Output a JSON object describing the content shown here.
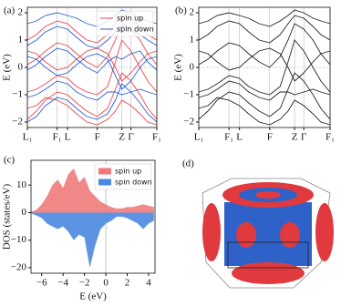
{
  "chart_data": [
    {
      "type": "line",
      "panel_label": "(a)",
      "ylabel": "E (eV)",
      "x": [
        0,
        0.07,
        0.14,
        0.23,
        0.31,
        0.38,
        0.46,
        0.54,
        0.62,
        0.68,
        0.73,
        0.8,
        0.87,
        0.93,
        1.0
      ],
      "xlim": [
        0,
        1
      ],
      "xticks": [
        {
          "value": 0,
          "label": "L₁"
        },
        {
          "value": 0.23,
          "label": "F₁"
        },
        {
          "value": 0.31,
          "label": "L"
        },
        {
          "value": 0.54,
          "label": "F"
        },
        {
          "value": 0.73,
          "label": "Z"
        },
        {
          "value": 0.8,
          "label": "Γ"
        },
        {
          "value": 1.0,
          "label": "F₁"
        }
      ],
      "ylim": [
        -2.2,
        2.2
      ],
      "yticks": [
        {
          "value": -2,
          "label": "−2"
        },
        {
          "value": -1,
          "label": "−1"
        },
        0,
        1,
        2
      ],
      "grid": true,
      "legend": "upper right",
      "series": [
        {
          "name": "spin up",
          "color": "#e8464b",
          "bands": [
            [
              -1.9,
              -1.6,
              -1.2,
              -0.9,
              -1.0,
              -1.3,
              -1.6,
              -1.8,
              -1.5,
              -0.8,
              -0.2,
              -0.5,
              -1.0,
              -1.5,
              -1.9
            ],
            [
              -0.9,
              -0.8,
              -0.6,
              -0.3,
              -0.4,
              -0.7,
              -0.9,
              -1.0,
              -0.7,
              0.2,
              1.0,
              0.6,
              0.0,
              -0.5,
              -0.9
            ],
            [
              0.1,
              0.3,
              0.6,
              0.9,
              0.8,
              0.5,
              0.2,
              0.0,
              0.4,
              1.0,
              1.6,
              1.4,
              1.0,
              0.5,
              0.1
            ],
            [
              1.0,
              1.2,
              1.5,
              1.7,
              1.6,
              1.3,
              1.0,
              0.9,
              1.2,
              1.6,
              1.9,
              1.8,
              1.5,
              1.2,
              1.0
            ],
            [
              -1.5,
              -1.4,
              -1.1,
              -1.2,
              -1.4,
              -1.7,
              -2.0,
              -2.1,
              -1.9,
              -1.6,
              -1.2,
              -1.4,
              -1.7,
              -2.0,
              -2.1
            ],
            [
              0.6,
              0.5,
              0.2,
              -0.1,
              0.0,
              0.3,
              0.6,
              0.7,
              0.5,
              0.0,
              -0.5,
              -0.2,
              0.2,
              0.5,
              0.6
            ]
          ]
        },
        {
          "name": "spin down",
          "color": "#2b5fd0",
          "bands": [
            [
              -2.0,
              -1.8,
              -1.4,
              -1.1,
              -1.2,
              -1.5,
              -1.8,
              -1.9,
              -1.7,
              -1.2,
              -0.6,
              -0.9,
              -1.3,
              -1.7,
              -2.0
            ],
            [
              -1.1,
              -1.0,
              -0.8,
              -0.5,
              -0.6,
              -0.9,
              -1.1,
              -1.2,
              -0.9,
              -0.9,
              -1.0,
              -0.9,
              -0.8,
              -0.9,
              -1.0
            ],
            [
              -0.1,
              0.1,
              0.4,
              0.7,
              0.6,
              0.3,
              0.0,
              -0.2,
              0.2,
              0.4,
              0.3,
              0.5,
              0.6,
              0.2,
              -0.1
            ],
            [
              0.8,
              1.0,
              1.3,
              1.5,
              1.4,
              1.1,
              0.8,
              0.7,
              1.0,
              1.3,
              1.5,
              1.4,
              1.2,
              1.0,
              0.8
            ],
            [
              1.6,
              1.7,
              1.9,
              2.0,
              1.9,
              1.8,
              1.6,
              1.5,
              1.7,
              1.9,
              2.1,
              2.0,
              1.8,
              1.7,
              1.6
            ],
            [
              0.4,
              0.3,
              0.0,
              -0.3,
              -0.2,
              0.1,
              0.4,
              0.5,
              0.3,
              -0.3,
              -0.8,
              -0.5,
              0.0,
              0.3,
              0.4
            ]
          ]
        }
      ]
    },
    {
      "type": "line",
      "panel_label": "(b)",
      "ylabel": "E (eV)",
      "x": [
        0,
        0.07,
        0.14,
        0.23,
        0.31,
        0.38,
        0.46,
        0.54,
        0.62,
        0.68,
        0.73,
        0.8,
        0.87,
        0.93,
        1.0
      ],
      "xlim": [
        0,
        1
      ],
      "xticks": [
        {
          "value": 0,
          "label": "L₁"
        },
        {
          "value": 0.23,
          "label": "F₁"
        },
        {
          "value": 0.31,
          "label": "L"
        },
        {
          "value": 0.54,
          "label": "F"
        },
        {
          "value": 0.73,
          "label": "Z"
        },
        {
          "value": 0.8,
          "label": "Γ"
        },
        {
          "value": 1.0,
          "label": "F₁"
        }
      ],
      "ylim": [
        -2.2,
        2.2
      ],
      "yticks": [
        {
          "value": -2,
          "label": "−2"
        },
        {
          "value": -1,
          "label": "−1"
        },
        0,
        1,
        2
      ],
      "grid": true,
      "series": [
        {
          "color": "#222222",
          "bands": [
            [
              -1.9,
              -1.6,
              -1.2,
              -0.9,
              -1.0,
              -1.3,
              -1.6,
              -1.8,
              -1.5,
              -0.8,
              -0.2,
              -0.5,
              -1.0,
              -1.5,
              -1.9
            ],
            [
              -0.9,
              -0.8,
              -0.6,
              -0.3,
              -0.4,
              -0.7,
              -0.9,
              -1.0,
              -0.7,
              0.2,
              1.0,
              0.6,
              0.0,
              -0.5,
              -0.9
            ],
            [
              0.1,
              0.3,
              0.6,
              0.9,
              0.8,
              0.5,
              0.2,
              0.0,
              0.4,
              1.0,
              1.6,
              1.4,
              1.0,
              0.5,
              0.1
            ],
            [
              1.0,
              1.2,
              1.5,
              1.7,
              1.6,
              1.3,
              1.0,
              0.9,
              1.2,
              1.6,
              1.9,
              1.8,
              1.5,
              1.2,
              1.0
            ],
            [
              -1.5,
              -1.4,
              -1.1,
              -1.2,
              -1.4,
              -1.7,
              -2.0,
              -2.1,
              -1.9,
              -1.6,
              -1.2,
              -1.4,
              -1.7,
              -2.0,
              -2.1
            ],
            [
              0.6,
              0.5,
              0.2,
              -0.1,
              0.0,
              0.3,
              0.6,
              0.7,
              0.5,
              0.0,
              -0.5,
              -0.2,
              0.2,
              0.5,
              0.6
            ],
            [
              -1.1,
              -1.0,
              -0.8,
              -0.5,
              -0.6,
              -0.9,
              -1.1,
              -1.2,
              -0.9,
              -0.9,
              -1.0,
              -0.9,
              -0.8,
              -0.9,
              -1.0
            ],
            [
              1.6,
              1.7,
              1.9,
              2.0,
              1.9,
              1.8,
              1.6,
              1.5,
              1.7,
              1.9,
              2.1,
              2.0,
              1.8,
              1.7,
              1.6
            ]
          ]
        }
      ]
    },
    {
      "type": "area",
      "panel_label": "(c)",
      "ylabel": "DOS (states/eV)",
      "xlabel": "E (eV)",
      "x": [
        -7,
        -6.5,
        -6,
        -5.5,
        -5,
        -4.5,
        -4,
        -3.5,
        -3,
        -2.5,
        -2,
        -1.5,
        -1,
        -0.5,
        0,
        0.5,
        1,
        1.5,
        2,
        2.5,
        3,
        3.5,
        4,
        4.5
      ],
      "xlim": [
        -7,
        4.6
      ],
      "xticks": [
        {
          "value": -6,
          "label": "−6"
        },
        {
          "value": -4,
          "label": "−4"
        },
        {
          "value": -2,
          "label": "−2"
        },
        0,
        2,
        4
      ],
      "ylim": [
        -22,
        19
      ],
      "yticks": [
        {
          "value": -20,
          "label": "−20"
        },
        {
          "value": -10,
          "label": "−10"
        },
        0,
        10
      ],
      "legend": "upper right",
      "series": [
        {
          "name": "spin up",
          "color": "#f07a7a",
          "values": [
            0.3,
            1,
            3,
            6,
            10,
            12,
            9,
            14,
            16,
            11,
            13,
            8,
            6,
            4,
            3,
            2,
            1.5,
            1.5,
            2,
            2,
            2.5,
            3,
            2.5,
            2
          ]
        },
        {
          "name": "spin down",
          "color": "#4a88e0",
          "values": [
            -0.3,
            -1,
            -2,
            -4,
            -5,
            -6,
            -5,
            -7,
            -10,
            -8,
            -9,
            -20,
            -12,
            -6,
            -4,
            -3,
            -1.5,
            -1.5,
            -2,
            -3,
            -4,
            -6,
            -4,
            -3
          ]
        }
      ]
    }
  ],
  "panel_d": {
    "panel_label": "(d)"
  }
}
